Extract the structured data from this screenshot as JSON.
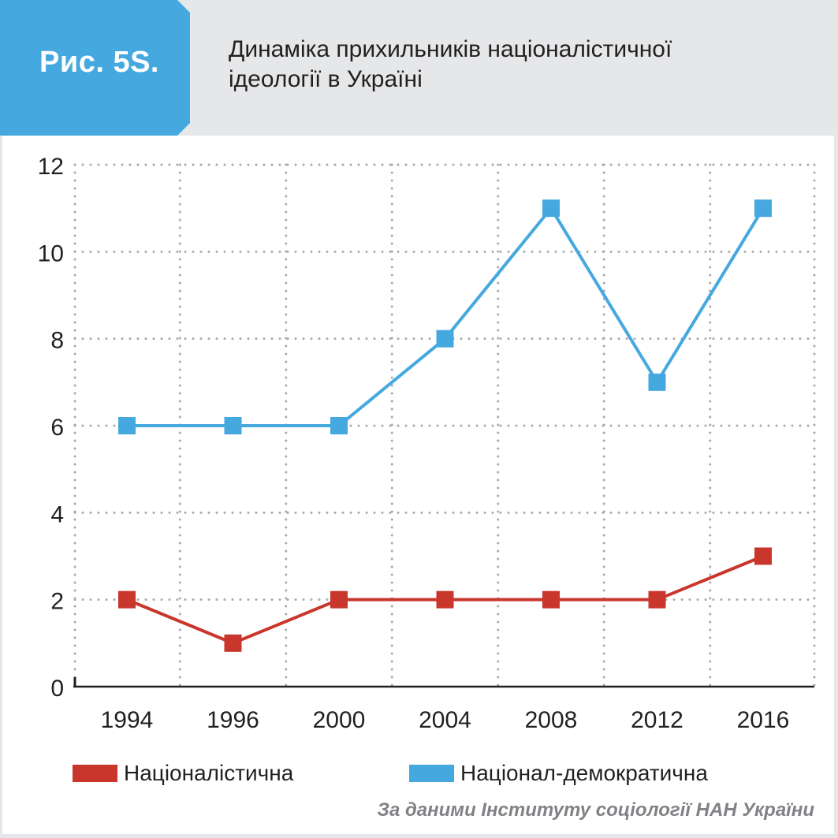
{
  "header": {
    "figure_label": "Рис. 5S.",
    "title_lines": [
      "Динаміка прихильників націоналістичної",
      "ідеології в Україні"
    ]
  },
  "colors": {
    "accent": "#45a9df",
    "series_red": "#c9362c",
    "series_blue": "#45a9df",
    "grid": "#a7a9ac",
    "axis": "#231f20"
  },
  "chart_data": {
    "type": "line",
    "categories": [
      "1994",
      "1996",
      "2000",
      "2004",
      "2008",
      "2012",
      "2016"
    ],
    "series": [
      {
        "name": "Національно-демократична",
        "legend": "Націонал-демократична",
        "color": "#45a9df",
        "values": [
          6,
          6,
          6,
          8,
          11,
          7,
          11
        ]
      },
      {
        "name": "Націоналістична",
        "legend": "Націоналістична",
        "color": "#c9362c",
        "values": [
          2,
          1,
          2,
          2,
          2,
          2,
          3
        ]
      }
    ],
    "ylim": [
      0,
      12
    ],
    "yticks": [
      0,
      2,
      4,
      6,
      8,
      10,
      12
    ],
    "grid": true,
    "marker": "square",
    "legend_placement": "bottom"
  },
  "legend": [
    {
      "label": "Націоналістична",
      "color": "#c9362c"
    },
    {
      "label": "Націонал-демократична",
      "color": "#45a9df"
    }
  ],
  "source": "За даними Інституту соціології НАН України"
}
